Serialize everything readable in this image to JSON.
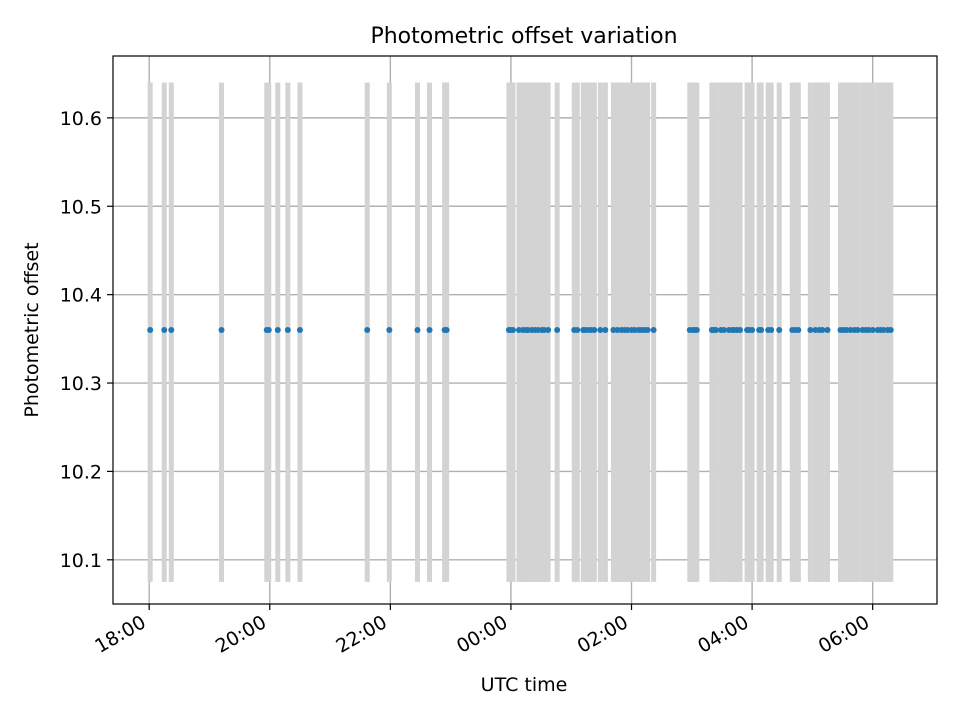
{
  "chart_data": {
    "type": "scatter",
    "title": "Photometric offset variation",
    "xlabel": "UTC time",
    "ylabel": "Photometric offset",
    "x_axis_type": "time",
    "xlim": [
      "17:24",
      "07:04"
    ],
    "ylim": [
      10.05,
      10.67
    ],
    "grid": true,
    "x_ticks": [
      "18:00",
      "20:00",
      "22:00",
      "00:00",
      "02:00",
      "04:00",
      "06:00"
    ],
    "y_ticks": [
      "10.1",
      "10.2",
      "10.3",
      "10.4",
      "10.5",
      "10.6"
    ],
    "point_color": "#1f77b4",
    "band_color": "#d3d3d3",
    "band_range": [
      10.075,
      10.64
    ],
    "points_x": [
      "18:01",
      "18:15",
      "18:22",
      "19:12",
      "19:57",
      "19:59",
      "20:08",
      "20:18",
      "20:30",
      "21:37",
      "21:59",
      "22:27",
      "22:39",
      "22:54",
      "22:56",
      "23:58",
      "00:00",
      "00:02",
      "00:08",
      "00:12",
      "00:15",
      "00:17",
      "00:21",
      "00:24",
      "00:27",
      "00:31",
      "00:33",
      "00:37",
      "00:46",
      "01:03",
      "01:06",
      "01:12",
      "01:14",
      "01:17",
      "01:20",
      "01:23",
      "01:29",
      "01:34",
      "01:42",
      "01:46",
      "01:50",
      "01:53",
      "01:56",
      "02:00",
      "02:03",
      "02:07",
      "02:10",
      "02:13",
      "02:16",
      "02:22",
      "02:58",
      "03:01",
      "03:03",
      "03:05",
      "03:20",
      "03:22",
      "03:24",
      "03:29",
      "03:32",
      "03:37",
      "03:40",
      "03:42",
      "03:45",
      "03:48",
      "03:55",
      "03:57",
      "04:00",
      "04:07",
      "04:09",
      "04:16",
      "04:19",
      "04:27",
      "04:40",
      "04:43",
      "04:46",
      "04:58",
      "05:03",
      "05:07",
      "05:10",
      "05:15",
      "05:28",
      "05:31",
      "05:34",
      "05:38",
      "05:42",
      "05:45",
      "05:50",
      "05:53",
      "05:56",
      "06:00",
      "06:05",
      "06:08",
      "06:11",
      "06:15",
      "06:18"
    ],
    "points_y": 10.36,
    "bands_x": "same as points_x"
  }
}
